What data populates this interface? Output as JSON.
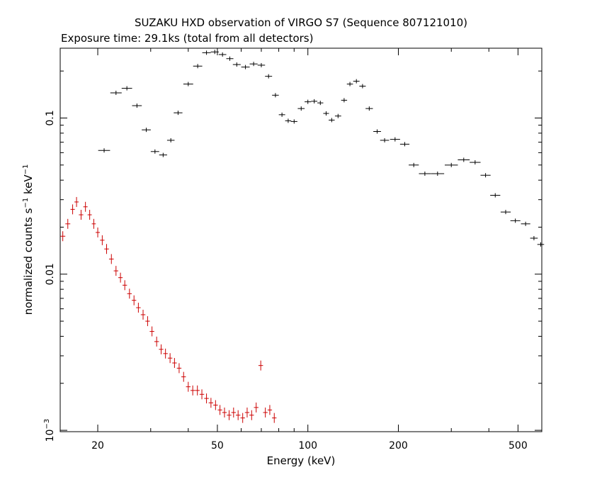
{
  "chart_data": {
    "type": "scatter",
    "title": "SUZAKU HXD observation of VIRGO S7 (Sequence 807121010)",
    "subtitle": "Exposure time: 29.1ks (total from all detectors)",
    "xlabel": "Energy (keV)",
    "ylabel_main": "normalized counts s",
    "ylabel_sup1": "−1",
    "ylabel_mid": " keV",
    "ylabel_sup2": "−1",
    "x_scale": "log",
    "y_scale": "log",
    "xlim": [
      15,
      600
    ],
    "ylim": [
      0.00098,
      0.28
    ],
    "x_ticks": [
      20,
      50,
      100,
      200,
      500
    ],
    "y_ticks": [
      0.001,
      0.01,
      0.1
    ],
    "y_tick_labels": {
      "0.1": {
        "base": "0.1",
        "sup": ""
      },
      "0.01": {
        "base": "0.01",
        "sup": ""
      },
      "0.001": {
        "base": "10",
        "sup": "−3"
      }
    },
    "grid": false,
    "series": [
      {
        "color": "#000000",
        "points": [
          [
            21,
            0.062
          ],
          [
            23,
            0.145
          ],
          [
            25,
            0.155
          ],
          [
            27,
            0.12
          ],
          [
            29,
            0.084
          ],
          [
            31,
            0.061
          ],
          [
            33,
            0.058
          ],
          [
            35,
            0.072
          ],
          [
            37,
            0.108
          ],
          [
            40,
            0.165
          ],
          [
            43,
            0.215
          ],
          [
            46,
            0.262
          ],
          [
            49,
            0.265
          ],
          [
            52,
            0.255
          ],
          [
            55,
            0.24
          ],
          [
            58,
            0.22
          ],
          [
            62,
            0.212
          ],
          [
            66,
            0.222
          ],
          [
            70,
            0.218
          ],
          [
            74,
            0.185
          ],
          [
            78,
            0.14
          ],
          [
            82,
            0.105
          ],
          [
            86,
            0.096
          ],
          [
            90,
            0.095
          ],
          [
            95,
            0.115
          ],
          [
            100,
            0.127
          ],
          [
            105,
            0.128
          ],
          [
            110,
            0.125
          ],
          [
            115,
            0.107
          ],
          [
            120,
            0.097
          ],
          [
            126,
            0.103
          ],
          [
            132,
            0.13
          ],
          [
            138,
            0.165
          ],
          [
            145,
            0.172
          ],
          [
            152,
            0.16
          ],
          [
            160,
            0.115
          ],
          [
            170,
            0.082
          ],
          [
            180,
            0.072
          ],
          [
            195,
            0.073
          ],
          [
            210,
            0.068
          ],
          [
            225,
            0.05
          ],
          [
            245,
            0.044
          ],
          [
            270,
            0.044
          ],
          [
            300,
            0.05
          ],
          [
            330,
            0.054
          ],
          [
            360,
            0.052
          ],
          [
            390,
            0.043
          ],
          [
            420,
            0.032
          ],
          [
            455,
            0.025
          ],
          [
            490,
            0.022
          ],
          [
            530,
            0.021
          ],
          [
            565,
            0.017
          ],
          [
            595,
            0.0155
          ]
        ]
      },
      {
        "color": "#cc0000",
        "points": [
          [
            15.3,
            0.0175
          ],
          [
            15.9,
            0.021
          ],
          [
            16.5,
            0.026
          ],
          [
            17.0,
            0.029
          ],
          [
            17.6,
            0.024
          ],
          [
            18.2,
            0.027
          ],
          [
            18.8,
            0.024
          ],
          [
            19.4,
            0.021
          ],
          [
            20.0,
            0.0185
          ],
          [
            20.7,
            0.0165
          ],
          [
            21.4,
            0.0145
          ],
          [
            22.2,
            0.0125
          ],
          [
            23.0,
            0.0105
          ],
          [
            23.8,
            0.0095
          ],
          [
            24.6,
            0.0085
          ],
          [
            25.5,
            0.0075
          ],
          [
            26.4,
            0.0068
          ],
          [
            27.3,
            0.0061
          ],
          [
            28.3,
            0.0055
          ],
          [
            29.3,
            0.005
          ],
          [
            30.3,
            0.0043
          ],
          [
            31.4,
            0.0037
          ],
          [
            32.5,
            0.0033
          ],
          [
            33.6,
            0.0031
          ],
          [
            34.8,
            0.0029
          ],
          [
            36.0,
            0.0027
          ],
          [
            37.3,
            0.0025
          ],
          [
            38.6,
            0.0022
          ],
          [
            40.0,
            0.0019
          ],
          [
            41.4,
            0.0018
          ],
          [
            42.9,
            0.0018
          ],
          [
            44.4,
            0.0017
          ],
          [
            46.0,
            0.0016
          ],
          [
            47.6,
            0.0015
          ],
          [
            49.3,
            0.00145
          ],
          [
            51.0,
            0.00135
          ],
          [
            52.8,
            0.0013
          ],
          [
            54.7,
            0.00125
          ],
          [
            56.6,
            0.0013
          ],
          [
            58.6,
            0.00125
          ],
          [
            60.7,
            0.0012
          ],
          [
            62.8,
            0.0013
          ],
          [
            65.0,
            0.00125
          ],
          [
            67.3,
            0.0014
          ],
          [
            69.7,
            0.0026
          ],
          [
            72.2,
            0.0013
          ],
          [
            74.7,
            0.00135
          ],
          [
            77.3,
            0.0012
          ]
        ]
      }
    ]
  }
}
